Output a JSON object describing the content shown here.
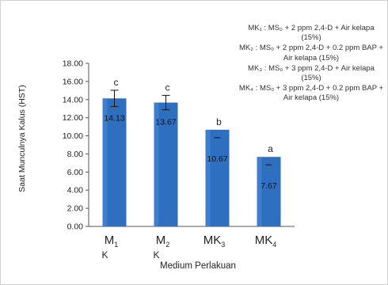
{
  "chart_data": {
    "type": "bar",
    "categories": [
      {
        "main": "M",
        "sub": "1",
        "below": "K"
      },
      {
        "main": "M",
        "sub": "2",
        "below": "K"
      },
      {
        "main": "MK",
        "sub": "3",
        "below": ""
      },
      {
        "main": "MK",
        "sub": "4",
        "below": ""
      }
    ],
    "values": [
      14.13,
      13.67,
      10.67,
      7.67
    ],
    "value_labels": [
      "14.13",
      "13.67",
      "10.67",
      "7.67"
    ],
    "errors": [
      0.9,
      0.8,
      0,
      0
    ],
    "letters": [
      "c",
      "c",
      "b",
      "a"
    ],
    "xlabel": "Medium  Perlakuan",
    "ylabel": "Saat Munculnya Kalus (HST)",
    "ylim": [
      0,
      18
    ],
    "yticks": [
      "0.00",
      "2.00",
      "4.00",
      "6.00",
      "8.00",
      "10.00",
      "12.00",
      "14.00",
      "16.00",
      "18.00"
    ],
    "bar_color": "#2f6fbf",
    "grid": false,
    "legend": [
      "MK₁ : MS₀ + 2 ppm 2,4-D + Air kelapa (15%)",
      "MK₂ : MS₀ + 2 ppm 2,4-D + 0.2 ppm BAP + Air kelapa (15%)",
      "MK₃ : MS₀ + 3 ppm 2,4-D + Air kelapa (15%)",
      "MK₄ : MS₀ + 3 ppm 2,4-D + 0.2 ppm BAP + Air kelapa (15%)"
    ],
    "legend_position": "top-right"
  }
}
